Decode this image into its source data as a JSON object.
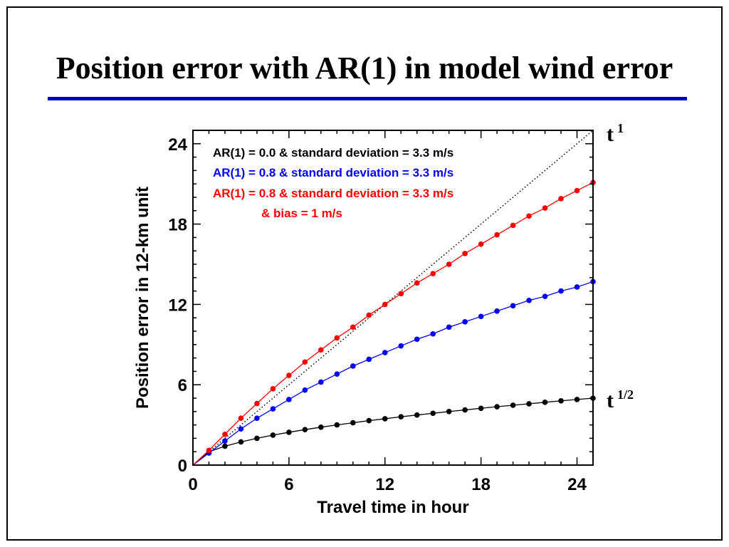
{
  "slide": {
    "title": "Position error with AR(1) in model wind error",
    "rule_color": "#0000c8"
  },
  "chart_data": {
    "type": "line",
    "xlabel": "Travel time in hour",
    "ylabel": "Position error in 12-km unit",
    "xlim": [
      0,
      25
    ],
    "ylim": [
      0,
      25
    ],
    "xticks": [
      0,
      6,
      12,
      18,
      24
    ],
    "yticks": [
      0,
      6,
      12,
      18,
      24
    ],
    "x": [
      1,
      2,
      3,
      4,
      5,
      6,
      7,
      8,
      9,
      10,
      11,
      12,
      13,
      14,
      15,
      16,
      17,
      18,
      19,
      20,
      21,
      22,
      23,
      24,
      25
    ],
    "series": [
      {
        "name": "AR(1) = 0.0 & standard deviation = 3.3 m/s",
        "color": "#000000",
        "values": [
          1.0,
          1.41,
          1.73,
          2.0,
          2.24,
          2.45,
          2.65,
          2.83,
          3.0,
          3.16,
          3.32,
          3.46,
          3.61,
          3.74,
          3.87,
          4.0,
          4.12,
          4.24,
          4.36,
          4.47,
          4.58,
          4.69,
          4.8,
          4.9,
          5.0
        ]
      },
      {
        "name": "AR(1) = 0.8 & standard deviation = 3.3 m/s",
        "color": "#0000ff",
        "values": [
          0.9,
          1.8,
          2.7,
          3.5,
          4.2,
          4.9,
          5.6,
          6.2,
          6.8,
          7.4,
          7.9,
          8.4,
          8.9,
          9.4,
          9.8,
          10.3,
          10.7,
          11.1,
          11.5,
          11.9,
          12.3,
          12.6,
          13.0,
          13.3,
          13.7
        ]
      },
      {
        "name": "AR(1) = 0.8 & standard deviation = 3.3 m/s",
        "name_line2": "& bias = 1 m/s",
        "color": "#ff0000",
        "values": [
          1.1,
          2.3,
          3.5,
          4.6,
          5.7,
          6.7,
          7.7,
          8.6,
          9.5,
          10.3,
          11.2,
          12.0,
          12.8,
          13.6,
          14.3,
          15.0,
          15.8,
          16.5,
          17.2,
          17.9,
          18.6,
          19.2,
          19.9,
          20.5,
          21.1
        ]
      }
    ],
    "reference_line": {
      "from": [
        0,
        0
      ],
      "to": [
        25,
        25
      ],
      "style": "dotted",
      "color": "#000000"
    },
    "annotations": [
      {
        "base": "t",
        "sup": "1",
        "at_series": "reference"
      },
      {
        "base": "t",
        "sup": "1/2",
        "at_series": "black"
      }
    ],
    "legend_placement": "top-left",
    "grid": false
  }
}
